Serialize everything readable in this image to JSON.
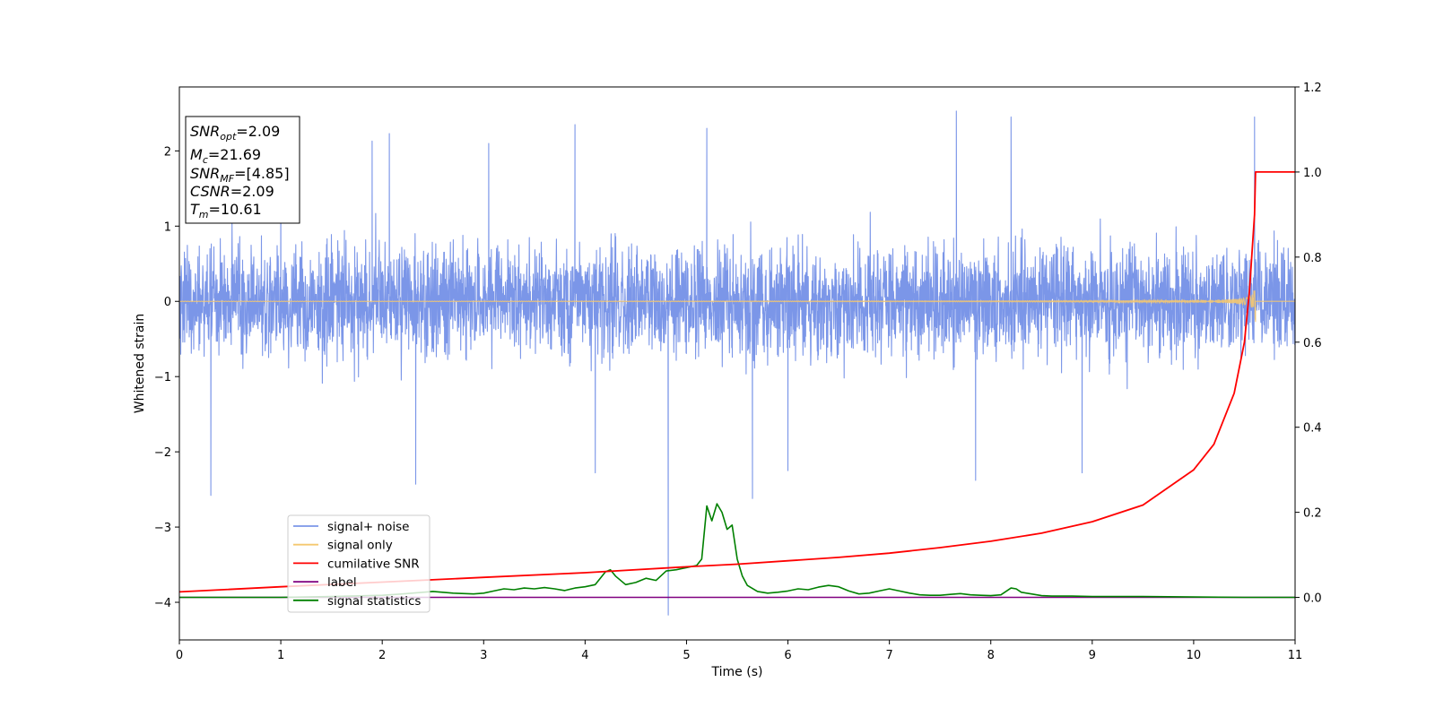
{
  "chart_data": {
    "type": "line",
    "xlabel": "Time (s)",
    "ylabel": "Whitened strain",
    "xlim": [
      0,
      11
    ],
    "ylim_left": [
      -4.5,
      2.85
    ],
    "ylim_right": [
      -0.1,
      1.2
    ],
    "x_ticks": [
      0,
      1,
      2,
      3,
      4,
      5,
      6,
      7,
      8,
      9,
      10,
      11
    ],
    "x_tick_labels": [
      "0",
      "1",
      "2",
      "3",
      "4",
      "5",
      "6",
      "7",
      "8",
      "9",
      "10",
      "11"
    ],
    "y_left_ticks": [
      -4,
      -3,
      -2,
      -1,
      0,
      1,
      2
    ],
    "y_left_tick_labels": [
      "−4",
      "−3",
      "−2",
      "−1",
      "0",
      "1",
      "2"
    ],
    "y_right_ticks": [
      0.0,
      0.2,
      0.4,
      0.6,
      0.8,
      1.0,
      1.2
    ],
    "y_right_tick_labels": [
      "0.0",
      "0.2",
      "0.4",
      "0.6",
      "0.8",
      "1.0",
      "1.2"
    ],
    "annotation": {
      "lines": [
        {
          "main": "SNR",
          "sub": "opt",
          "rest": "=2.09"
        },
        {
          "main": "M",
          "sub": "c",
          "rest": "=21.69"
        },
        {
          "main": "SNR",
          "sub": "MF",
          "rest": "=[4.85]"
        },
        {
          "main": "CSNR",
          "sub": "",
          "rest": "=2.09"
        },
        {
          "main": "T",
          "sub": "m",
          "rest": "=10.61"
        }
      ]
    },
    "legend": {
      "placement": "lower-left",
      "entries": [
        {
          "label": "signal+ noise",
          "color": "#7b96e8"
        },
        {
          "label": "signal only",
          "color": "#f5c86f"
        },
        {
          "label": "cumilative SNR",
          "color": "#ff0000"
        },
        {
          "label": "label",
          "color": "#800080"
        },
        {
          "label": "signal statistics",
          "color": "#008000"
        }
      ]
    },
    "series": [
      {
        "name": "signal+ noise",
        "axis": "left",
        "color": "#7b96e8",
        "kind": "noise",
        "x_range": [
          0,
          11
        ],
        "typical_envelope": [
          -1.6,
          1.6
        ],
        "spikes": [
          {
            "x": 0.31,
            "y": -2.58
          },
          {
            "x": 1.0,
            "y": 1.7
          },
          {
            "x": 1.9,
            "y": 2.13
          },
          {
            "x": 2.07,
            "y": 2.23
          },
          {
            "x": 2.33,
            "y": -2.43
          },
          {
            "x": 3.05,
            "y": 2.1
          },
          {
            "x": 3.9,
            "y": 2.35
          },
          {
            "x": 4.1,
            "y": -2.28
          },
          {
            "x": 4.82,
            "y": -4.17
          },
          {
            "x": 5.2,
            "y": 2.3
          },
          {
            "x": 5.65,
            "y": -2.62
          },
          {
            "x": 6.0,
            "y": -2.25
          },
          {
            "x": 7.66,
            "y": 2.53
          },
          {
            "x": 7.85,
            "y": -2.38
          },
          {
            "x": 8.2,
            "y": 2.45
          },
          {
            "x": 8.9,
            "y": -2.28
          },
          {
            "x": 10.6,
            "y": 2.45
          }
        ]
      },
      {
        "name": "signal only",
        "axis": "left",
        "color": "#f5c86f",
        "kind": "chirp",
        "x_range": [
          0,
          10.61
        ],
        "peak_amplitude": 0.3
      },
      {
        "name": "cumilative SNR",
        "axis": "right",
        "color": "#ff0000",
        "x": [
          0,
          1,
          2,
          3,
          4,
          5,
          5.5,
          6,
          6.5,
          7,
          7.5,
          8,
          8.5,
          9,
          9.5,
          10,
          10.2,
          10.4,
          10.5,
          10.55,
          10.6,
          10.61,
          11
        ],
        "y": [
          0.013,
          0.025,
          0.036,
          0.047,
          0.058,
          0.072,
          0.078,
          0.086,
          0.094,
          0.104,
          0.117,
          0.132,
          0.151,
          0.178,
          0.217,
          0.3,
          0.36,
          0.48,
          0.6,
          0.72,
          0.9,
          1.0,
          1.0
        ]
      },
      {
        "name": "label",
        "axis": "right",
        "color": "#800080",
        "x": [
          0,
          11
        ],
        "y": [
          0,
          0
        ]
      },
      {
        "name": "signal statistics",
        "axis": "right",
        "color": "#008000",
        "x": [
          0,
          1.0,
          1.5,
          2.0,
          2.2,
          2.5,
          2.7,
          2.9,
          3.0,
          3.1,
          3.2,
          3.3,
          3.4,
          3.5,
          3.6,
          3.7,
          3.8,
          3.9,
          4.0,
          4.1,
          4.2,
          4.25,
          4.3,
          4.4,
          4.5,
          4.6,
          4.7,
          4.8,
          4.9,
          5.0,
          5.1,
          5.15,
          5.2,
          5.25,
          5.3,
          5.35,
          5.4,
          5.45,
          5.5,
          5.55,
          5.6,
          5.7,
          5.8,
          5.9,
          6.0,
          6.1,
          6.2,
          6.3,
          6.4,
          6.5,
          6.6,
          6.7,
          6.8,
          6.9,
          7.0,
          7.1,
          7.2,
          7.3,
          7.4,
          7.5,
          7.6,
          7.7,
          7.8,
          7.9,
          8.0,
          8.1,
          8.2,
          8.25,
          8.3,
          8.4,
          8.5,
          8.6,
          8.8,
          9.0,
          9.5,
          10.0,
          10.5,
          11.0
        ],
        "y": [
          0.0,
          0.0,
          0.002,
          0.005,
          0.008,
          0.014,
          0.01,
          0.008,
          0.01,
          0.015,
          0.02,
          0.018,
          0.022,
          0.02,
          0.023,
          0.02,
          0.016,
          0.022,
          0.025,
          0.03,
          0.06,
          0.065,
          0.05,
          0.03,
          0.035,
          0.045,
          0.04,
          0.062,
          0.065,
          0.07,
          0.075,
          0.09,
          0.215,
          0.18,
          0.22,
          0.2,
          0.16,
          0.17,
          0.09,
          0.05,
          0.028,
          0.014,
          0.01,
          0.012,
          0.015,
          0.02,
          0.018,
          0.024,
          0.028,
          0.025,
          0.015,
          0.008,
          0.01,
          0.015,
          0.02,
          0.015,
          0.01,
          0.006,
          0.005,
          0.005,
          0.007,
          0.009,
          0.006,
          0.005,
          0.004,
          0.006,
          0.022,
          0.02,
          0.012,
          0.008,
          0.004,
          0.003,
          0.003,
          0.002,
          0.002,
          0.001,
          0.0,
          0.0
        ]
      }
    ]
  }
}
